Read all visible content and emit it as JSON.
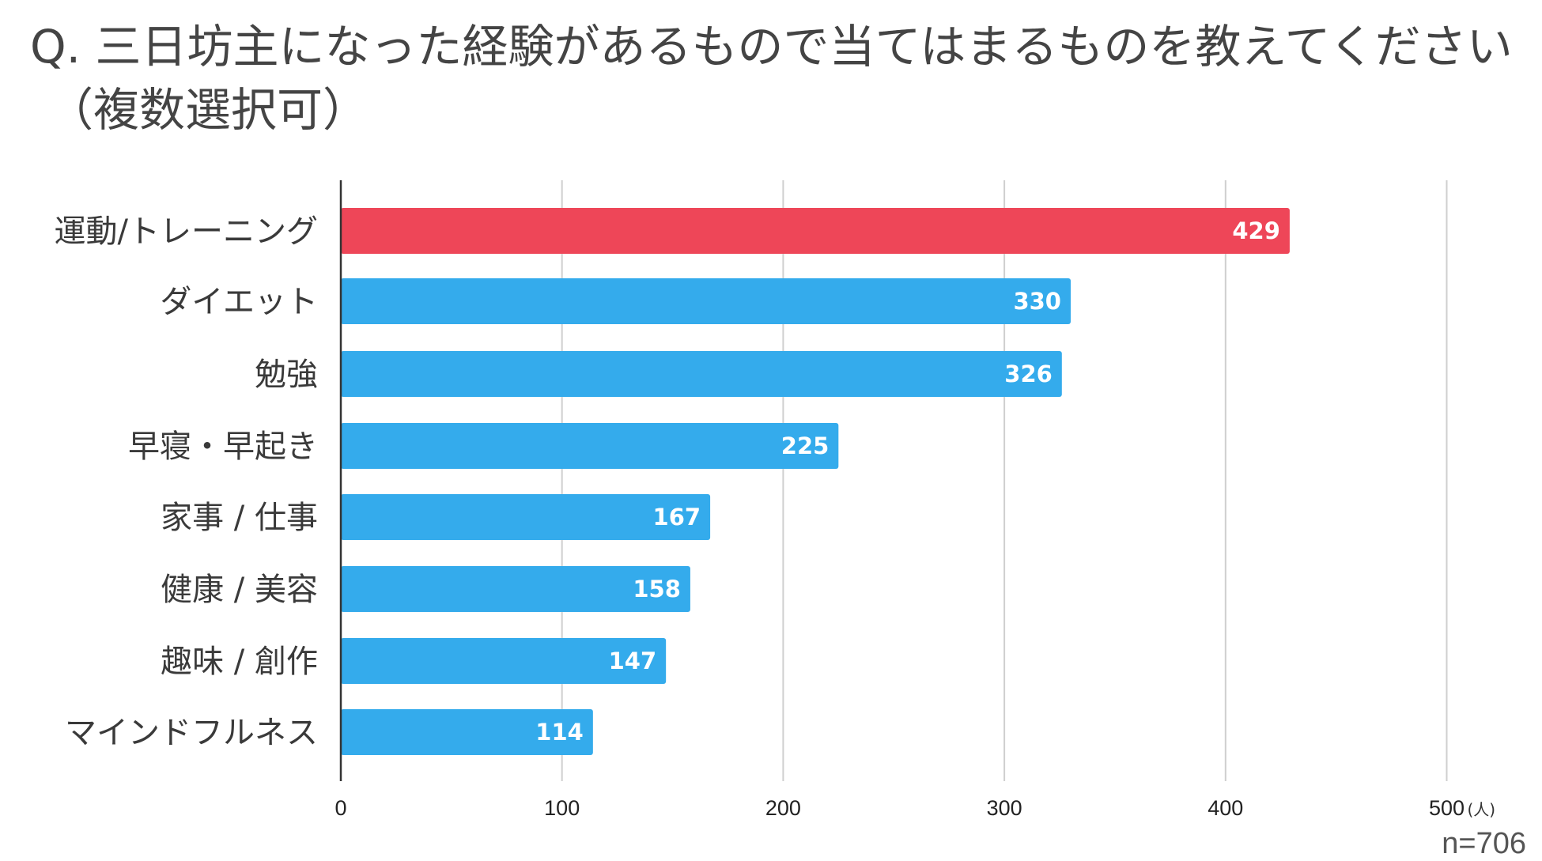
{
  "title": {
    "line1": "Q. 三日坊主になった経験があるもので当てはまるものを教えてください",
    "line2": "（複数選択可）"
  },
  "sample": "n=706",
  "colors": {
    "highlight": "#ee4658",
    "bar": "#34abec",
    "grid": "#cfcfcf",
    "axis": "#333333"
  },
  "chart_data": {
    "type": "bar",
    "orientation": "horizontal",
    "categories": [
      "運動/トレーニング",
      "ダイエット",
      "勉強",
      "早寝・早起き",
      "家事 / 仕事",
      "健康 / 美容",
      "趣味 / 創作",
      "マインドフルネス"
    ],
    "values": [
      429,
      330,
      326,
      225,
      167,
      158,
      147,
      114
    ],
    "highlight_index": 0,
    "xlim": [
      0,
      500
    ],
    "ticks": [
      0,
      100,
      200,
      300,
      400,
      500
    ],
    "tick_labels": [
      "0",
      "100",
      "200",
      "300",
      "400",
      "500"
    ],
    "unit": "(人)",
    "grid": true
  }
}
